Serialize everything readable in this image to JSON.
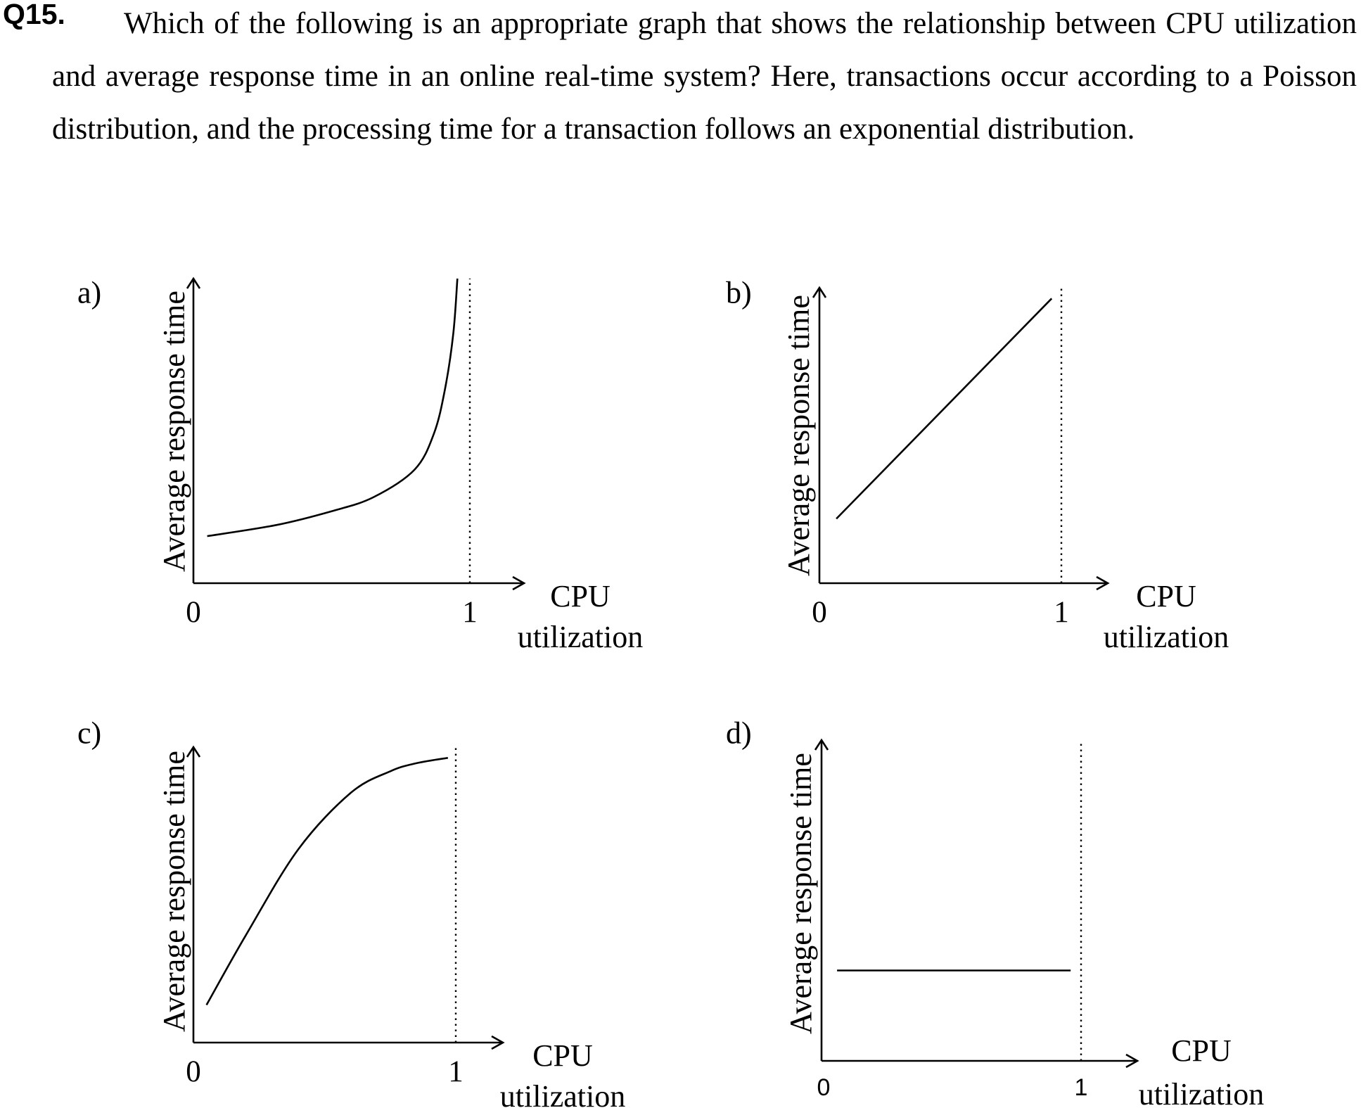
{
  "question": {
    "number": "Q15.",
    "text": "Which of the following is an appropriate graph that shows the relationship between CPU utilization and average response time in an online real-time system? Here, transactions occur according to a Poisson distribution, and the processing time for a transaction follows an exponential distribution."
  },
  "chart_data": [
    {
      "type": "line",
      "option_label": "a)",
      "ylabel": "Average response time",
      "xlabel_line1": "CPU",
      "xlabel_line2": "utilization",
      "tick_zero": "0",
      "tick_one": "1",
      "xlim": [
        0,
        1.2
      ],
      "ylim": [
        0,
        1.1
      ],
      "reference_line_x": 1,
      "x": [
        0.05,
        0.3,
        0.5,
        0.65,
        0.8,
        0.87,
        0.91,
        0.94,
        0.955
      ],
      "y": [
        0.17,
        0.21,
        0.26,
        0.31,
        0.41,
        0.54,
        0.7,
        0.9,
        1.1
      ]
    },
    {
      "type": "line",
      "option_label": "b)",
      "ylabel": "Average response time",
      "xlabel_line1": "CPU",
      "xlabel_line2": "utilization",
      "tick_zero": "0",
      "tick_one": "1",
      "xlim": [
        0,
        1.2
      ],
      "ylim": [
        0,
        1.1
      ],
      "reference_line_x": 1,
      "x": [
        0.07,
        0.96
      ],
      "y": [
        0.24,
        1.06
      ]
    },
    {
      "type": "line",
      "option_label": "c)",
      "ylabel": "Average response time",
      "xlabel_line1": "CPU",
      "xlabel_line2": "utilization",
      "tick_zero": "0",
      "tick_one": "1",
      "xlim": [
        0,
        1.2
      ],
      "ylim": [
        0,
        1.1
      ],
      "reference_line_x": 1,
      "x": [
        0.05,
        0.2,
        0.4,
        0.6,
        0.75,
        0.85,
        0.97
      ],
      "y": [
        0.14,
        0.4,
        0.72,
        0.93,
        1.01,
        1.04,
        1.06
      ]
    },
    {
      "type": "line",
      "option_label": "d)",
      "ylabel": "Average response time",
      "xlabel_line1": "CPU",
      "xlabel_line2": "utilization",
      "tick_zero": "0",
      "tick_one": "1",
      "xlim": [
        0,
        1.2
      ],
      "ylim": [
        0,
        1.1
      ],
      "reference_line_x": 1,
      "x": [
        0.06,
        0.96
      ],
      "y": [
        0.31,
        0.31
      ]
    }
  ]
}
